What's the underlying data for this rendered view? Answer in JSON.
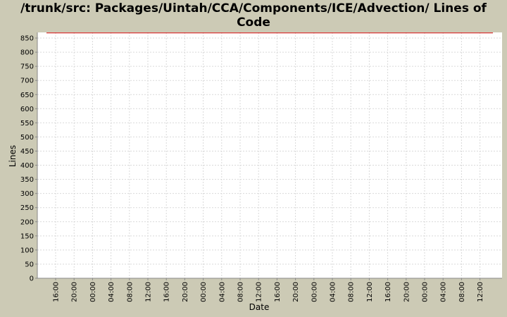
{
  "chart_data": {
    "type": "line",
    "title_line1": "/trunk/src: Packages/Uintah/CCA/Components/ICE/Advection/ Lines of",
    "title_line2": "Code",
    "xlabel": "Date",
    "ylabel": "Lines",
    "ylim": [
      0,
      870
    ],
    "yticks": [
      0,
      50,
      100,
      150,
      200,
      250,
      300,
      350,
      400,
      450,
      500,
      550,
      600,
      650,
      700,
      750,
      800,
      850
    ],
    "xtick_labels": [
      "16:00",
      "20:00",
      "00:00",
      "04:00",
      "08:00",
      "12:00",
      "16:00",
      "20:00",
      "00:00",
      "04:00",
      "08:00",
      "12:00",
      "16:00",
      "20:00",
      "00:00",
      "04:00",
      "08:00",
      "12:00",
      "16:00",
      "20:00",
      "00:00",
      "04:00",
      "08:00",
      "12:00"
    ],
    "grid": true,
    "series": [
      {
        "color": "#cc0000",
        "values": [
          868,
          868
        ]
      }
    ],
    "colors": {
      "background": "#cccab5",
      "plot_background": "#ffffff",
      "grid": "#d9d9d9",
      "series": "#cc0000"
    }
  }
}
